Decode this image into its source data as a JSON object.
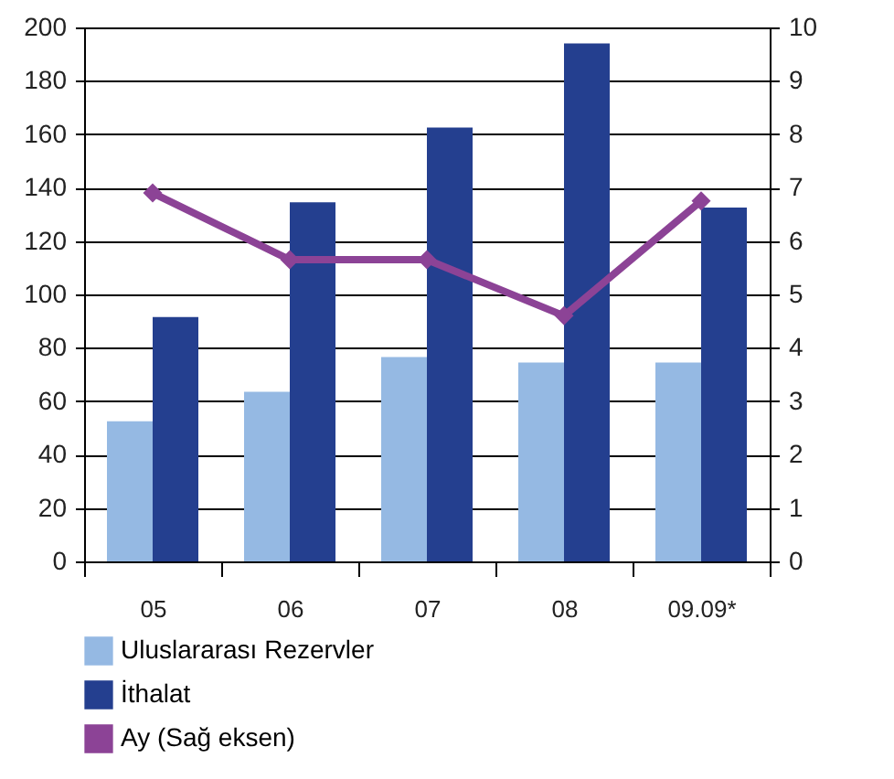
{
  "chart_data": {
    "type": "bar",
    "categories": [
      "05",
      "06",
      "07",
      "08",
      "09.09*"
    ],
    "series": [
      {
        "name": "Uluslararası Rezervler",
        "color": "#95b9e3",
        "values": [
          52.5,
          63.5,
          76.5,
          74.5,
          74.5
        ]
      },
      {
        "name": "İthalat",
        "color": "#243f8f",
        "values": [
          91.5,
          134.5,
          162.5,
          194,
          132.5
        ]
      },
      {
        "name": "Ay (Sağ eksen)",
        "color": "#8c4396",
        "type": "line",
        "axis": "y2",
        "values": [
          6.9,
          5.65,
          5.65,
          4.6,
          6.75
        ]
      }
    ],
    "ylim": [
      0,
      200
    ],
    "yticks": [
      0,
      20,
      40,
      60,
      80,
      100,
      120,
      140,
      160,
      180,
      200
    ],
    "y2lim": [
      0,
      10
    ],
    "y2ticks": [
      0,
      1,
      2,
      3,
      4,
      5,
      6,
      7,
      8,
      9,
      10
    ],
    "grid": "y",
    "legend": "bottom",
    "marker": "diamond"
  }
}
